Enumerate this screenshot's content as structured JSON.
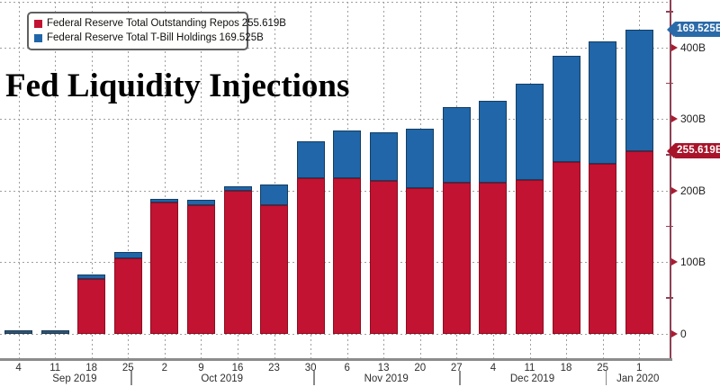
{
  "title": "Fed Liquidity Injections",
  "colors": {
    "repo_red": "#c21333",
    "repo_red_border": "#8c0d20",
    "tbill_blue": "#2066a8",
    "tbill_blue_border": "#143e63",
    "tiny_bar": "#3c5064",
    "badge_red": "#a8142a",
    "badge_blue": "#2a6aa9",
    "axis_spine_maroon": "#8e4154",
    "tick_arrow_red": "#a91c31",
    "grid_gray": "#9f9f9f",
    "bottom_axis_gray": "#8b8b8b"
  },
  "legend": {
    "items": [
      {
        "label": "Federal Reserve Total Outstanding Repos",
        "value": "255.619B",
        "swatch_color": "#c21333"
      },
      {
        "label": "Federal Reserve Total T-Bill Holdings",
        "value": "169.525B",
        "swatch_color": "#2066a8"
      }
    ]
  },
  "axis_badges": [
    {
      "text": "169.525B",
      "at_value": 425.144,
      "bg": "#2a6aa9"
    },
    {
      "text": "255.619B",
      "at_value": 255.619,
      "bg": "#a8142a"
    }
  ],
  "x_axis": {
    "months": [
      {
        "label": "Sep 2019",
        "days": [
          "4",
          "11",
          "18",
          "25"
        ]
      },
      {
        "label": "Oct 2019",
        "days": [
          "2",
          "9",
          "16",
          "23",
          "30"
        ]
      },
      {
        "label": "Nov 2019",
        "days": [
          "6",
          "13",
          "20",
          "27"
        ]
      },
      {
        "label": "Dec 2019",
        "days": [
          "4",
          "11",
          "18",
          "25"
        ]
      },
      {
        "label": "Jan 2020",
        "days": [
          "1"
        ]
      }
    ]
  },
  "chart_data": {
    "type": "bar",
    "stacked": true,
    "title": "Fed Liquidity Injections",
    "unit": "billions USD",
    "xlabel": "",
    "ylabel": "",
    "ylim": [
      0,
      450
    ],
    "grid": "dotted",
    "legend_position": "top-left",
    "categories": [
      "Sep 4 2019",
      "Sep 11 2019",
      "Sep 18 2019",
      "Sep 25 2019",
      "Oct 2 2019",
      "Oct 9 2019",
      "Oct 16 2019",
      "Oct 23 2019",
      "Oct 30 2019",
      "Nov 6 2019",
      "Nov 13 2019",
      "Nov 20 2019",
      "Nov 27 2019",
      "Dec 4 2019",
      "Dec 11 2019",
      "Dec 18 2019",
      "Dec 25 2019",
      "Jan 1 2020"
    ],
    "series": [
      {
        "name": "Federal Reserve Total Outstanding Repos",
        "color": "#c21333",
        "values": [
          0,
          0,
          77,
          105,
          183,
          180,
          200,
          180,
          217,
          217,
          214,
          204,
          211,
          211,
          215,
          240,
          238,
          255.619
        ]
      },
      {
        "name": "Federal Reserve Total T-Bill Holdings",
        "color": "#2066a8",
        "values": [
          5,
          5,
          6,
          9,
          6,
          7,
          6,
          29,
          52,
          67,
          67,
          82,
          106,
          115,
          134,
          148,
          170,
          169.525
        ]
      }
    ],
    "y_ticks": [
      {
        "label": "400B",
        "value": 400
      },
      {
        "label": "300B",
        "value": 300
      },
      {
        "label": "200B",
        "value": 200
      },
      {
        "label": "100B",
        "value": 100
      },
      {
        "label": "0",
        "value": 0
      }
    ],
    "y_minor_ticks": [
      450,
      350,
      250,
      150,
      50
    ]
  }
}
